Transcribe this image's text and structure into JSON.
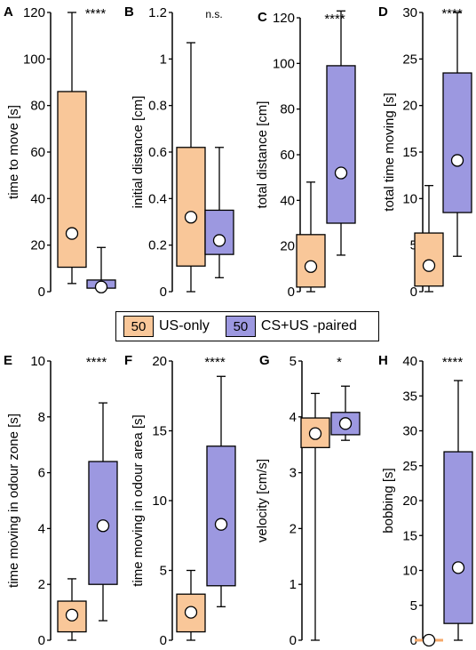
{
  "colors": {
    "us_only": "#f9c799",
    "cs_us_paired": "#9c98e0",
    "zero_line": "#f5a86a"
  },
  "legend": {
    "items": [
      {
        "n": "50",
        "label": "US-only",
        "color": "#f9c799"
      },
      {
        "n": "50",
        "label": "CS+US -paired",
        "color": "#9c98e0"
      }
    ]
  },
  "chart_data": [
    {
      "type": "box",
      "panel": "A",
      "ylabel": "time to move [s]",
      "significance": "****",
      "ylim": [
        0,
        120
      ],
      "yticks": [
        "0",
        "20",
        "40",
        "60",
        "80",
        "100",
        "120"
      ],
      "series": [
        {
          "group": "US-only",
          "whisker_low": 3.5,
          "q1": 10.5,
          "median": 10.5,
          "q3": 86,
          "whisker_high": 120,
          "mean": 25
        },
        {
          "group": "CS+US -paired",
          "whisker_low": 1.5,
          "q1": 1.5,
          "median": 1.5,
          "q3": 5,
          "whisker_high": 19,
          "mean": 2
        }
      ]
    },
    {
      "type": "box",
      "panel": "B",
      "ylabel": "initial distance [cm]",
      "significance": "n.s.",
      "ylim": [
        0,
        1.2
      ],
      "yticks": [
        "0",
        "0.2",
        "0.4",
        "0.6",
        "0.8",
        "1",
        "1.2"
      ],
      "series": [
        {
          "group": "US-only",
          "whisker_low": 0,
          "q1": 0.11,
          "median": 0.11,
          "q3": 0.62,
          "whisker_high": 1.07,
          "mean": 0.32
        },
        {
          "group": "CS+US -paired",
          "whisker_low": 0.06,
          "q1": 0.16,
          "median": 0.16,
          "q3": 0.35,
          "whisker_high": 0.62,
          "mean": 0.22
        }
      ]
    },
    {
      "type": "box",
      "panel": "C",
      "ylabel": "total distance [cm]",
      "significance": "****",
      "ylim": [
        0,
        120
      ],
      "yticks": [
        "0",
        "20",
        "40",
        "60",
        "80",
        "100",
        "120"
      ],
      "series": [
        {
          "group": "US-only",
          "whisker_low": 0,
          "q1": 2,
          "median": 2,
          "q3": 25,
          "whisker_high": 48,
          "mean": 11
        },
        {
          "group": "CS+US -paired",
          "whisker_low": 16,
          "q1": 30,
          "median": 30,
          "q3": 99,
          "whisker_high": 123,
          "mean": 52
        }
      ]
    },
    {
      "type": "box",
      "panel": "D",
      "ylabel": "total time moving [s]",
      "significance": "****",
      "ylim": [
        0,
        30
      ],
      "yticks": [
        "0",
        "5",
        "10",
        "15",
        "20",
        "25",
        "30"
      ],
      "series": [
        {
          "group": "US-only",
          "whisker_low": 0,
          "q1": 0.6,
          "median": 0.6,
          "q3": 6.3,
          "whisker_high": 11.4,
          "mean": 2.8
        },
        {
          "group": "CS+US -paired",
          "whisker_low": 3.8,
          "q1": 8.5,
          "median": 8.5,
          "q3": 23.5,
          "whisker_high": 30,
          "mean": 14.1
        }
      ]
    },
    {
      "type": "box",
      "panel": "E",
      "ylabel": "time moving in odour zone [s]",
      "significance": "****",
      "ylim": [
        0,
        10
      ],
      "yticks": [
        "0",
        "2",
        "4",
        "6",
        "8",
        "10"
      ],
      "series": [
        {
          "group": "US-only",
          "whisker_low": 0,
          "q1": 0.3,
          "median": 0.3,
          "q3": 1.4,
          "whisker_high": 2.2,
          "mean": 0.9
        },
        {
          "group": "CS+US -paired",
          "whisker_low": 0.7,
          "q1": 2,
          "median": 2,
          "q3": 6.4,
          "whisker_high": 8.5,
          "mean": 4.1
        }
      ]
    },
    {
      "type": "box",
      "panel": "F",
      "ylabel": "time moving in odour area [s]",
      "significance": "****",
      "ylim": [
        0,
        20
      ],
      "yticks": [
        "0",
        "5",
        "10",
        "15",
        "20"
      ],
      "series": [
        {
          "group": "US-only",
          "whisker_low": 0,
          "q1": 0.6,
          "median": 0.6,
          "q3": 3.3,
          "whisker_high": 5,
          "mean": 2
        },
        {
          "group": "CS+US -paired",
          "whisker_low": 2.4,
          "q1": 3.9,
          "median": 3.9,
          "q3": 13.9,
          "whisker_high": 18.9,
          "mean": 8.3
        }
      ]
    },
    {
      "type": "box",
      "panel": "G",
      "ylabel": "velocity [cm/s]",
      "significance": "*",
      "ylim": [
        0,
        5
      ],
      "yticks": [
        "0",
        "1",
        "2",
        "3",
        "4",
        "5"
      ],
      "series": [
        {
          "group": "US-only",
          "whisker_low": 0,
          "q1": 3.45,
          "median": 3.45,
          "q3": 3.98,
          "whisker_high": 4.42,
          "mean": 3.7
        },
        {
          "group": "CS+US -paired",
          "whisker_low": 3.58,
          "q1": 3.68,
          "median": 3.68,
          "q3": 4.08,
          "whisker_high": 4.55,
          "mean": 3.88
        }
      ]
    },
    {
      "type": "box",
      "panel": "H",
      "ylabel": "bobbing [s]",
      "significance": "****",
      "ylim": [
        0,
        40
      ],
      "yticks": [
        "0",
        "5",
        "10",
        "15",
        "20",
        "25",
        "30",
        "35",
        "40"
      ],
      "series": [
        {
          "group": "US-only",
          "whisker_low": 0,
          "q1": 0,
          "median": 0,
          "q3": 0,
          "whisker_high": 0.6,
          "mean": 0
        },
        {
          "group": "CS+US -paired",
          "whisker_low": 0,
          "q1": 2.4,
          "median": 2.4,
          "q3": 27,
          "whisker_high": 37.2,
          "mean": 10.4
        }
      ]
    }
  ]
}
